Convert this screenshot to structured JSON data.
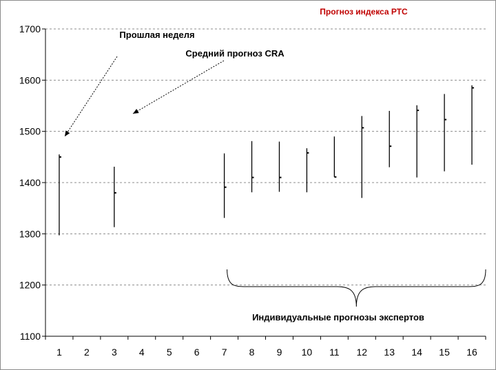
{
  "chart_data": {
    "type": "range",
    "title": "Прогноз индекса РТС",
    "xlabel": "",
    "ylabel": "",
    "categories": [
      "1",
      "2",
      "3",
      "4",
      "5",
      "6",
      "7",
      "8",
      "9",
      "10",
      "11",
      "12",
      "13",
      "14",
      "15",
      "16"
    ],
    "yticks": [
      1100,
      1200,
      1300,
      1400,
      1500,
      1600,
      1700
    ],
    "ylim": [
      1100,
      1700
    ],
    "grid": true,
    "grid_style": "dashed",
    "series": [
      {
        "points": [
          {
            "x": "1",
            "low": 1297,
            "high": 1455,
            "mark": 1450
          },
          {
            "x": "3",
            "low": 1313,
            "high": 1431,
            "mark": 1380
          },
          {
            "x": "7",
            "low": 1331,
            "high": 1457,
            "mark": 1391
          },
          {
            "x": "8",
            "low": 1381,
            "high": 1481,
            "mark": 1410
          },
          {
            "x": "9",
            "low": 1382,
            "high": 1480,
            "mark": 1410
          },
          {
            "x": "10",
            "low": 1381,
            "high": 1467,
            "mark": 1458
          },
          {
            "x": "11",
            "low": 1411,
            "high": 1490,
            "mark": 1411
          },
          {
            "x": "12",
            "low": 1370,
            "high": 1530,
            "mark": 1507
          },
          {
            "x": "13",
            "low": 1430,
            "high": 1540,
            "mark": 1471
          },
          {
            "x": "14",
            "low": 1410,
            "high": 1551,
            "mark": 1541
          },
          {
            "x": "15",
            "low": 1422,
            "high": 1573,
            "mark": 1523
          },
          {
            "x": "16",
            "low": 1435,
            "high": 1590,
            "mark": 1585
          }
        ]
      }
    ],
    "annotations": [
      {
        "text": "Прошлая неделя",
        "points_to": "1"
      },
      {
        "text": "Средний прогноз CRA",
        "points_to": "3"
      },
      {
        "text": "Индивидуальные прогнозы экспертов",
        "spans": [
          "7",
          "16"
        ]
      }
    ]
  }
}
